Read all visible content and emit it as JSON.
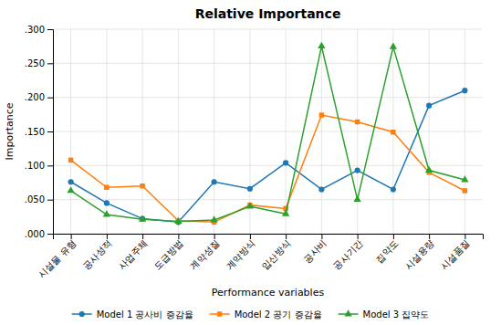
{
  "chart_data": {
    "type": "line",
    "title": "Relative Importance",
    "xlabel": "Performance variables",
    "ylabel": "Importance",
    "categories": [
      "시설물 유형",
      "공사성적",
      "사업주체",
      "도급방법",
      "계약성질",
      "계약방식",
      "입산방식",
      "공사비",
      "공사기간",
      "집약도",
      "시설용량",
      "시설품질"
    ],
    "series": [
      {
        "name": "Model 1 공사비 증감율",
        "marker": "circle",
        "line_style": "solid",
        "values": [
          0.076,
          0.045,
          0.022,
          0.017,
          0.076,
          0.066,
          0.104,
          0.065,
          0.093,
          0.065,
          0.188,
          0.21
        ]
      },
      {
        "name": "Model 2 공기 증감율",
        "marker": "square",
        "line_style": "solid",
        "values": [
          0.108,
          0.068,
          0.07,
          0.019,
          0.017,
          0.042,
          0.037,
          0.174,
          0.164,
          0.149,
          0.09,
          0.063
        ]
      },
      {
        "name": "Model 3 집약도",
        "marker": "triangle",
        "line_style": "solid",
        "values": [
          0.063,
          0.028,
          0.021,
          0.018,
          0.02,
          0.04,
          0.029,
          0.275,
          0.05,
          0.274,
          0.093,
          0.079
        ]
      }
    ],
    "ylim": [
      0.0,
      0.3
    ],
    "yticks": [
      {
        "value": 0.0,
        "label": ".000"
      },
      {
        "value": 0.05,
        "label": ".050"
      },
      {
        "value": 0.1,
        "label": ".100"
      },
      {
        "value": 0.15,
        "label": ".150"
      },
      {
        "value": 0.2,
        "label": ".200"
      },
      {
        "value": 0.25,
        "label": ".250"
      },
      {
        "value": 0.3,
        "label": ".300"
      }
    ],
    "grid": true,
    "legend": "bottom"
  }
}
